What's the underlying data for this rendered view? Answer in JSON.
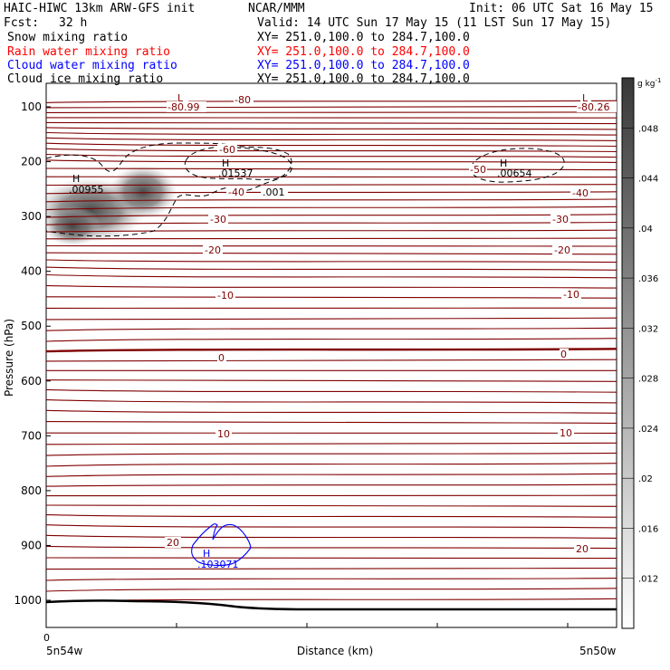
{
  "header": {
    "title_left": "HAIC-HIWC 13km ARW-GFS init",
    "org": "NCAR/MMM",
    "init": "Init: 06 UTC Sat 16 May 15",
    "fcst_label": "Fcst:",
    "fcst_value": "32 h",
    "valid": "Valid: 14 UTC Sun 17 May 15 (11 LST Sun 17 May 15)"
  },
  "fields": [
    {
      "name": "Snow mixing ratio",
      "xy": "XY= 251.0,100.0 to 284.7,100.0",
      "color": "#000000"
    },
    {
      "name": "Rain water mixing ratio",
      "xy": "XY= 251.0,100.0 to 284.7,100.0",
      "color": "#ff0000"
    },
    {
      "name": "Cloud water mixing ratio",
      "xy": "XY= 251.0,100.0 to 284.7,100.0",
      "color": "#0000ff"
    },
    {
      "name": "Cloud ice mixing ratio",
      "xy": "XY= 251.0,100.0 to 284.7,100.0",
      "color": "#000000"
    }
  ],
  "chart_data": {
    "type": "contour-cross-section",
    "xlabel": "Distance (km)",
    "ylabel": "Pressure (hPa)",
    "x_start_tick": "0",
    "x_left_label": "5n54w",
    "x_right_label": "5n50w",
    "ylim": [
      1050,
      50
    ],
    "yticks": [
      100,
      200,
      300,
      400,
      500,
      600,
      700,
      800,
      900,
      1000
    ],
    "colorbar": {
      "unit": "g kg",
      "unit_exp": "-1",
      "ticks": [
        ".012",
        ".016",
        ".02",
        ".024",
        ".028",
        ".032",
        ".036",
        ".04",
        ".044",
        ".048"
      ],
      "vmin": 0.008,
      "vmax": 0.052
    },
    "temperature_contours": {
      "color": "#800000",
      "zero_color": "#800000",
      "labels": [
        {
          "text": "-80",
          "p": 90
        },
        {
          "text": "-80.99",
          "p": 97
        },
        {
          "text": "-80.26",
          "p": 97
        },
        {
          "text": "-60",
          "p": 173
        },
        {
          "text": "-50",
          "p": 212
        },
        {
          "text": "-40",
          "p": 254
        },
        {
          "text": "-30",
          "p": 305
        },
        {
          "text": "-20",
          "p": 364
        },
        {
          "text": "-10",
          "p": 441
        },
        {
          "text": "0",
          "p": 552
        },
        {
          "text": "10",
          "p": 695
        },
        {
          "text": "20",
          "p": 889
        }
      ],
      "lows": [
        "L",
        "L"
      ]
    },
    "snow_maxima": [
      {
        "label": "H",
        "value": ".00955"
      },
      {
        "label": "H",
        "value": ".01537"
      },
      {
        "label": "H",
        "value": ".00654"
      }
    ],
    "snow_contour_value": ".001",
    "cloud_water_max": {
      "label": "H",
      "value": ".103071"
    },
    "terrain": "surface line near 1000 hPa"
  }
}
